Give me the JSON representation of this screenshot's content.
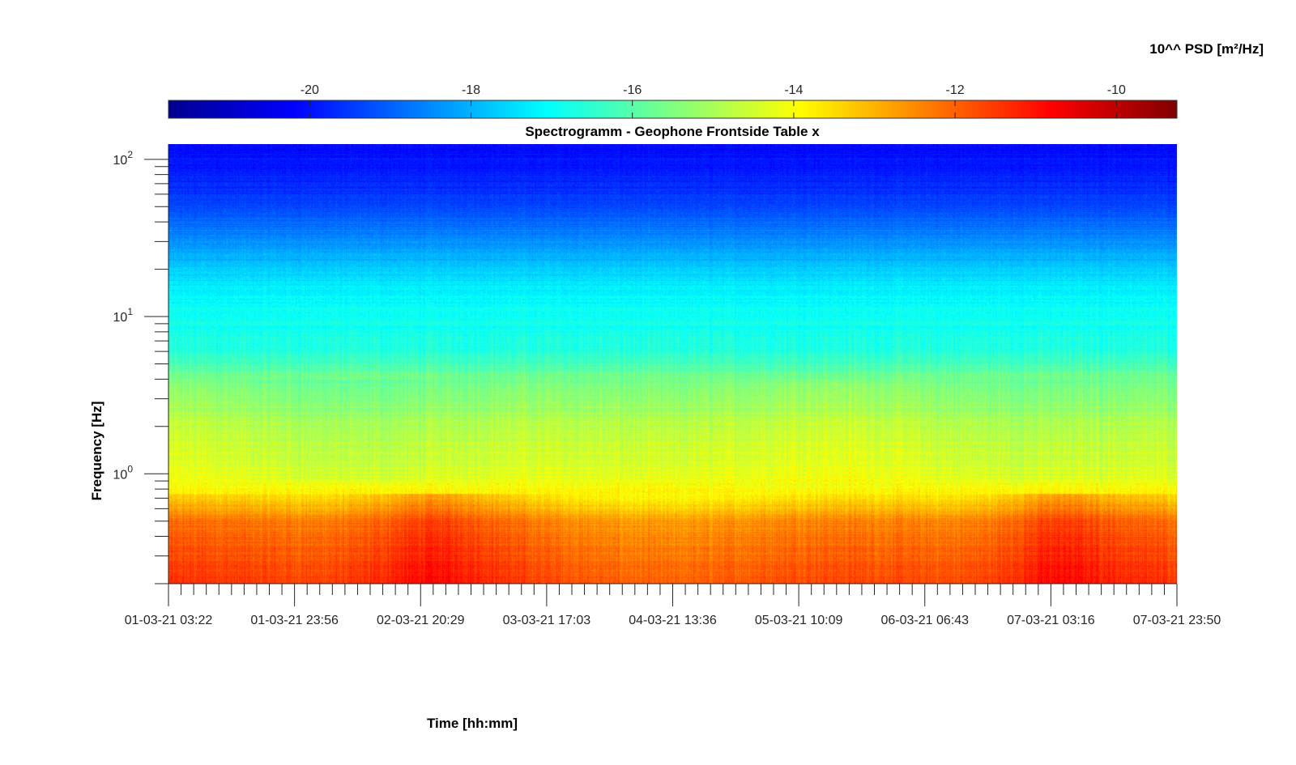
{
  "chart_data": {
    "type": "heatmap",
    "title": "Spectrogramm - Geophone Frontside Table x",
    "xlabel": "Time [hh:mm]",
    "ylabel": "Frequency [Hz]",
    "colorbar_label": "10^^ PSD [m²/Hz]",
    "y_scale": "log",
    "y_range": [
      0.2,
      125
    ],
    "y_ticks": [
      {
        "value": 100,
        "base": "10",
        "exp": "2"
      },
      {
        "value": 10,
        "base": "10",
        "exp": "1"
      },
      {
        "value": 1,
        "base": "10",
        "exp": "0"
      }
    ],
    "x_ticks": [
      "01-03-21 03:22",
      "01-03-21 23:56",
      "02-03-21 20:29",
      "03-03-21 17:03",
      "04-03-21 13:36",
      "05-03-21 10:09",
      "06-03-21 06:43",
      "07-03-21 03:16",
      "07-03-21 23:50"
    ],
    "colorbar_range": [
      -21.75,
      -9.25
    ],
    "colorbar_ticks": [
      -20,
      -18,
      -16,
      -14,
      -12,
      -10
    ],
    "colorbar_tick_labels": [
      "-20",
      "-18",
      "-16",
      "-14",
      "-12",
      "-10"
    ],
    "colormap": "jet",
    "colorbar_location": "top",
    "approx_log10_psd_by_frequency": [
      {
        "freq_hz": 0.2,
        "log10_psd": -11.6
      },
      {
        "freq_hz": 0.5,
        "log10_psd": -12.4
      },
      {
        "freq_hz": 0.7,
        "log10_psd": -13.6
      },
      {
        "freq_hz": 1,
        "log10_psd": -14.3
      },
      {
        "freq_hz": 2,
        "log10_psd": -14.8
      },
      {
        "freq_hz": 4,
        "log10_psd": -15.6
      },
      {
        "freq_hz": 6,
        "log10_psd": -16.6
      },
      {
        "freq_hz": 15,
        "log10_psd": -17.2
      },
      {
        "freq_hz": 30,
        "log10_psd": -18.4
      },
      {
        "freq_hz": 60,
        "log10_psd": -19.6
      },
      {
        "freq_hz": 125,
        "log10_psd": -20.1
      }
    ]
  }
}
